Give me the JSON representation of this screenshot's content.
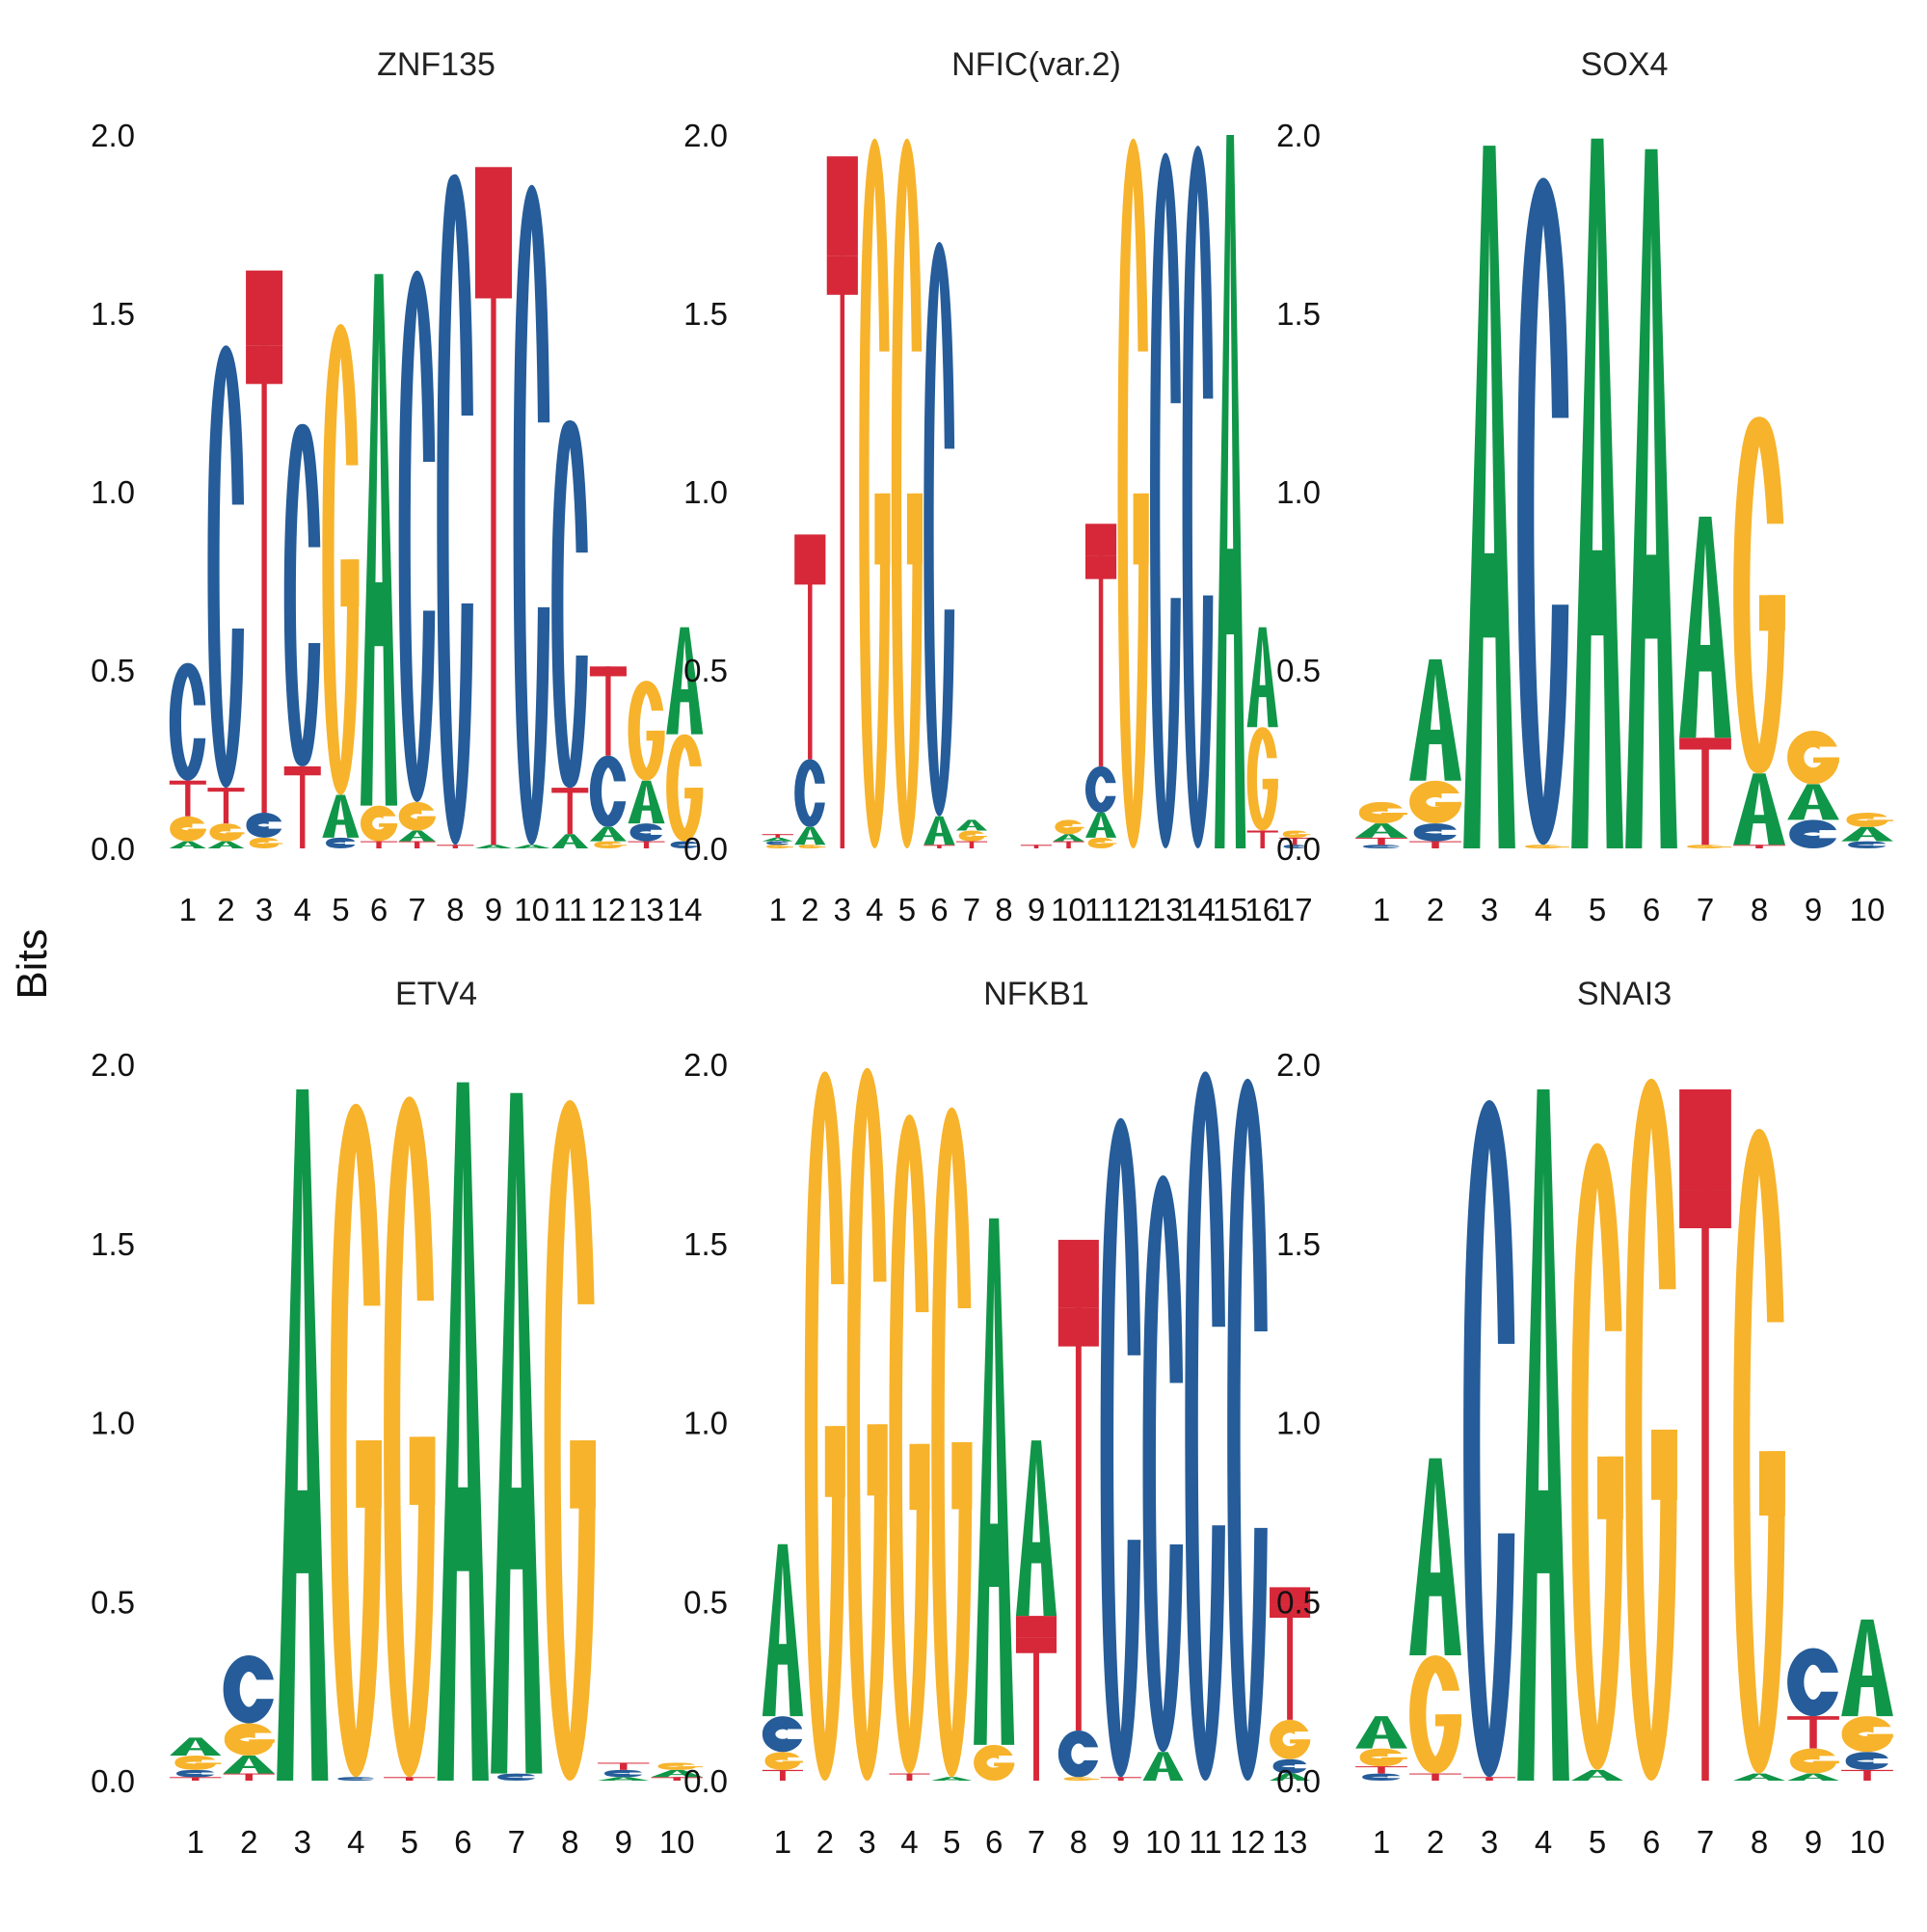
{
  "y_axis_label": "Bits",
  "letter_colors": {
    "A": "#109648",
    "C": "#255C99",
    "G": "#F7B32B",
    "T": "#D62839"
  },
  "chart_data": [
    {
      "type": "sequence-logo",
      "title": "ZNF135",
      "ylim": [
        0,
        2
      ],
      "yticks": [
        "0.0",
        "0.5",
        "1.0",
        "1.5",
        "2.0"
      ],
      "positions": [
        "1",
        "2",
        "3",
        "4",
        "5",
        "6",
        "7",
        "8",
        "9",
        "10",
        "11",
        "12",
        "13",
        "14"
      ],
      "stacks": [
        [
          [
            "A",
            0.02
          ],
          [
            "G",
            0.07
          ],
          [
            "T",
            0.1
          ],
          [
            "C",
            0.33
          ]
        ],
        [
          [
            "A",
            0.02
          ],
          [
            "G",
            0.05
          ],
          [
            "T",
            0.1
          ],
          [
            "C",
            1.24
          ]
        ],
        [
          [
            "G",
            0.03
          ],
          [
            "C",
            0.07
          ],
          [
            "T",
            1.31
          ],
          [
            "T_box",
            0.21
          ]
        ],
        [
          [
            "T",
            0.23
          ],
          [
            "C",
            0.96
          ]
        ],
        [
          [
            "C",
            0.03
          ],
          [
            "A",
            0.12
          ],
          [
            "G",
            1.32
          ]
        ],
        [
          [
            "T",
            0.02
          ],
          [
            "G",
            0.1
          ],
          [
            "A",
            1.49
          ]
        ],
        [
          [
            "T",
            0.02
          ],
          [
            "A",
            0.03
          ],
          [
            "G",
            0.08
          ],
          [
            "C",
            1.49
          ]
        ],
        [
          [
            "T",
            0.01
          ],
          [
            "C",
            1.88
          ]
        ],
        [
          [
            "A",
            0.01
          ],
          [
            "T",
            1.64
          ],
          [
            "T_box",
            0.26
          ]
        ],
        [
          [
            "A",
            0.01
          ],
          [
            "C",
            1.85
          ]
        ],
        [
          [
            "A",
            0.04
          ],
          [
            "T",
            0.13
          ],
          [
            "C",
            1.03
          ]
        ],
        [
          [
            "G",
            0.02
          ],
          [
            "A",
            0.04
          ],
          [
            "C",
            0.2
          ],
          [
            "T",
            0.25
          ]
        ],
        [
          [
            "T",
            0.02
          ],
          [
            "C",
            0.05
          ],
          [
            "A",
            0.12
          ],
          [
            "G",
            0.28
          ]
        ],
        [
          [
            "C",
            0.02
          ],
          [
            "G",
            0.3
          ],
          [
            "A",
            0.3
          ]
        ]
      ]
    },
    {
      "type": "sequence-logo",
      "title": "NFIC(var.2)",
      "ylim": [
        0,
        2
      ],
      "yticks": [
        "0.0",
        "0.5",
        "1.0",
        "1.5",
        "2.0"
      ],
      "positions": [
        "1",
        "2",
        "3",
        "4",
        "5",
        "6",
        "7",
        "8",
        "9",
        "10",
        "11",
        "12",
        "13",
        "14",
        "15",
        "16",
        "17"
      ],
      "stacks": [
        [
          [
            "G",
            0.01
          ],
          [
            "C",
            0.01
          ],
          [
            "A",
            0.01
          ],
          [
            "T",
            0.01
          ]
        ],
        [
          [
            "G",
            0.01
          ],
          [
            "A",
            0.05
          ],
          [
            "C",
            0.19
          ],
          [
            "T",
            0.55
          ],
          [
            "T_box",
            0.08
          ]
        ],
        [
          [
            "T",
            1.66
          ],
          [
            "T_box",
            0.28
          ]
        ],
        [
          [
            "G",
            1.99
          ]
        ],
        [
          [
            "G",
            1.99
          ]
        ],
        [
          [
            "T",
            0.01
          ],
          [
            "A",
            0.08
          ],
          [
            "C",
            1.61
          ]
        ],
        [
          [
            "T",
            0.02
          ],
          [
            "G",
            0.03
          ],
          [
            "A",
            0.03
          ]
        ],
        [],
        [
          [
            "T",
            0.01
          ]
        ],
        [
          [
            "T",
            0.02
          ],
          [
            "A",
            0.02
          ],
          [
            "G",
            0.04
          ]
        ],
        [
          [
            "G",
            0.03
          ],
          [
            "A",
            0.07
          ],
          [
            "C",
            0.13
          ],
          [
            "T",
            0.59
          ],
          [
            "T_box",
            0.09
          ]
        ],
        [
          [
            "G",
            1.99
          ]
        ],
        [
          [
            "C",
            1.95
          ]
        ],
        [
          [
            "C",
            1.97
          ]
        ],
        [
          [
            "A",
            2.0
          ]
        ],
        [
          [
            "T",
            0.05
          ],
          [
            "G",
            0.29
          ],
          [
            "A",
            0.28
          ]
        ],
        [
          [
            "C",
            0.01
          ],
          [
            "T",
            0.02
          ],
          [
            "G",
            0.02
          ]
        ]
      ]
    },
    {
      "type": "sequence-logo",
      "title": "SOX4",
      "ylim": [
        0,
        2
      ],
      "yticks": [
        "0.0",
        "0.5",
        "1.0",
        "1.5",
        "2.0"
      ],
      "positions": [
        "1",
        "2",
        "3",
        "4",
        "5",
        "6",
        "7",
        "8",
        "9",
        "10"
      ],
      "stacks": [
        [
          [
            "C",
            0.01
          ],
          [
            "T",
            0.02
          ],
          [
            "A",
            0.04
          ],
          [
            "G",
            0.06
          ]
        ],
        [
          [
            "T",
            0.02
          ],
          [
            "C",
            0.05
          ],
          [
            "G",
            0.12
          ],
          [
            "A",
            0.34
          ]
        ],
        [
          [
            "A",
            1.97
          ]
        ],
        [
          [
            "G",
            0.01
          ],
          [
            "C",
            1.87
          ]
        ],
        [
          [
            "A",
            1.99
          ]
        ],
        [
          [
            "A",
            1.96
          ]
        ],
        [
          [
            "G",
            0.01
          ],
          [
            "T",
            0.3
          ],
          [
            "A",
            0.62
          ]
        ],
        [
          [
            "T",
            0.01
          ],
          [
            "A",
            0.2
          ],
          [
            "G",
            1.0
          ]
        ],
        [
          [
            "C",
            0.08
          ],
          [
            "A",
            0.1
          ],
          [
            "G",
            0.15
          ]
        ],
        [
          [
            "C",
            0.02
          ],
          [
            "A",
            0.04
          ],
          [
            "G",
            0.04
          ]
        ]
      ]
    },
    {
      "type": "sequence-logo",
      "title": "ETV4",
      "ylim": [
        0,
        2
      ],
      "yticks": [
        "0.0",
        "0.5",
        "1.0",
        "1.5",
        "2.0"
      ],
      "positions": [
        "1",
        "2",
        "3",
        "4",
        "5",
        "6",
        "7",
        "8",
        "9",
        "10"
      ],
      "stacks": [
        [
          [
            "T",
            0.01
          ],
          [
            "C",
            0.02
          ],
          [
            "G",
            0.04
          ],
          [
            "A",
            0.05
          ]
        ],
        [
          [
            "T",
            0.02
          ],
          [
            "A",
            0.05
          ],
          [
            "G",
            0.09
          ],
          [
            "C",
            0.19
          ]
        ],
        [
          [
            "A",
            1.93
          ]
        ],
        [
          [
            "C",
            0.01
          ],
          [
            "G",
            1.88
          ]
        ],
        [
          [
            "T",
            0.01
          ],
          [
            "G",
            1.9
          ]
        ],
        [
          [
            "A",
            1.95
          ]
        ],
        [
          [
            "C",
            0.02
          ],
          [
            "A",
            1.9
          ]
        ],
        [
          [
            "G",
            1.9
          ]
        ],
        [
          [
            "A",
            0.01
          ],
          [
            "C",
            0.02
          ],
          [
            "T",
            0.02
          ]
        ],
        [
          [
            "T",
            0.01
          ],
          [
            "A",
            0.02
          ],
          [
            "G",
            0.02
          ]
        ]
      ]
    },
    {
      "type": "sequence-logo",
      "title": "NFKB1",
      "ylim": [
        0,
        2
      ],
      "yticks": [
        "0.0",
        "0.5",
        "1.0",
        "1.5",
        "2.0"
      ],
      "positions": [
        "1",
        "2",
        "3",
        "4",
        "5",
        "6",
        "7",
        "8",
        "9",
        "10",
        "11",
        "12",
        "13"
      ],
      "stacks": [
        [
          [
            "T",
            0.03
          ],
          [
            "G",
            0.05
          ],
          [
            "C",
            0.1
          ],
          [
            "A",
            0.48
          ]
        ],
        [
          [
            "G",
            1.98
          ]
        ],
        [
          [
            "G",
            1.99
          ]
        ],
        [
          [
            "T",
            0.02
          ],
          [
            "G",
            1.84
          ]
        ],
        [
          [
            "A",
            0.01
          ],
          [
            "G",
            1.87
          ]
        ],
        [
          [
            "G",
            0.1
          ],
          [
            "A",
            1.47
          ]
        ],
        [
          [
            "T",
            0.4
          ],
          [
            "T_box",
            0.06
          ],
          [
            "A",
            0.49
          ]
        ],
        [
          [
            "G",
            0.01
          ],
          [
            "C",
            0.13
          ],
          [
            "T",
            1.18
          ],
          [
            "T_box",
            0.19
          ]
        ],
        [
          [
            "T",
            0.01
          ],
          [
            "C",
            1.84
          ]
        ],
        [
          [
            "A",
            0.08
          ],
          [
            "C",
            1.61
          ]
        ],
        [
          [
            "C",
            1.98
          ]
        ],
        [
          [
            "C",
            1.96
          ]
        ],
        [
          [
            "A",
            0.02
          ],
          [
            "C",
            0.04
          ],
          [
            "G",
            0.11
          ],
          [
            "T",
            0.32
          ],
          [
            "T_box",
            0.05
          ]
        ]
      ]
    },
    {
      "type": "sequence-logo",
      "title": "SNAI3",
      "ylim": [
        0,
        2
      ],
      "yticks": [
        "0.0",
        "0.5",
        "1.0",
        "1.5",
        "2.0"
      ],
      "positions": [
        "1",
        "2",
        "3",
        "4",
        "5",
        "6",
        "7",
        "8",
        "9",
        "10"
      ],
      "stacks": [
        [
          [
            "C",
            0.02
          ],
          [
            "T",
            0.02
          ],
          [
            "G",
            0.05
          ],
          [
            "A",
            0.09
          ]
        ],
        [
          [
            "T",
            0.02
          ],
          [
            "G",
            0.33
          ],
          [
            "A",
            0.55
          ]
        ],
        [
          [
            "T",
            0.01
          ],
          [
            "C",
            1.89
          ]
        ],
        [
          [
            "A",
            1.93
          ]
        ],
        [
          [
            "A",
            0.03
          ],
          [
            "G",
            1.75
          ]
        ],
        [
          [
            "G",
            1.96
          ]
        ],
        [
          [
            "T",
            1.65
          ],
          [
            "T_box",
            0.28
          ]
        ],
        [
          [
            "A",
            0.02
          ],
          [
            "G",
            1.8
          ]
        ],
        [
          [
            "A",
            0.02
          ],
          [
            "G",
            0.07
          ],
          [
            "T",
            0.09
          ],
          [
            "C",
            0.19
          ]
        ],
        [
          [
            "T",
            0.03
          ],
          [
            "C",
            0.05
          ],
          [
            "G",
            0.1
          ],
          [
            "A",
            0.27
          ]
        ]
      ]
    }
  ]
}
